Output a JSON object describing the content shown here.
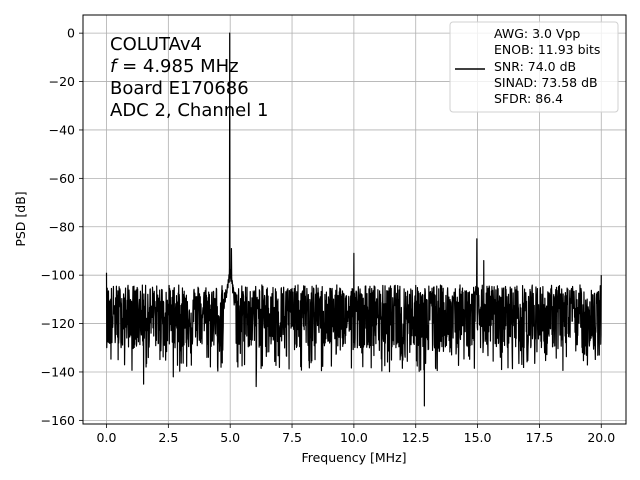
{
  "chart_data": {
    "type": "line",
    "title": "",
    "xlabel": "Frequency [MHz]",
    "ylabel": "PSD [dB]",
    "xlim": [
      -0.95,
      21.0
    ],
    "ylim": [
      -161.5,
      7.5
    ],
    "grid": true,
    "x_ticks": [
      0.0,
      2.5,
      5.0,
      7.5,
      10.0,
      12.5,
      15.0,
      17.5,
      20.0
    ],
    "x_tick_labels": [
      "0.0",
      "2.5",
      "5.0",
      "7.5",
      "10.0",
      "12.5",
      "15.0",
      "17.5",
      "20.0"
    ],
    "y_ticks": [
      0,
      -20,
      -40,
      -60,
      -80,
      -100,
      -120,
      -140,
      -160
    ],
    "y_tick_labels": [
      "0",
      "−20",
      "−40",
      "−60",
      "−80",
      "−100",
      "−120",
      "−140",
      "−160"
    ],
    "annotation": {
      "lines": [
        "COLUTAv4",
        "f = 4.985 MHz",
        "Board E170686",
        "ADC 2, Channel 1"
      ],
      "italic_prefix": "f",
      "freq_rest": " = 4.985 MHz"
    },
    "legend": {
      "placement": "top-right",
      "entries": [
        "AWG: 3.0 Vpp",
        "ENOB: 11.93 bits",
        "SNR: 74.0 dB",
        "SINAD: 73.58 dB",
        "SFDR: 86.4"
      ]
    },
    "series": [
      {
        "color": "#000000",
        "noise_floor": {
          "x_start": 0.0,
          "x_end": 20.0,
          "median_db": -116,
          "min_db": -140,
          "max_db": -104
        },
        "peaks": [
          {
            "x": 0.0,
            "y": -99
          },
          {
            "x": 1.5,
            "y": -145
          },
          {
            "x": 2.7,
            "y": -142
          },
          {
            "x": 4.985,
            "y": 0
          },
          {
            "x": 5.05,
            "y": -89
          },
          {
            "x": 6.05,
            "y": -146
          },
          {
            "x": 10.0,
            "y": -91
          },
          {
            "x": 12.85,
            "y": -154
          },
          {
            "x": 14.97,
            "y": -85
          },
          {
            "x": 15.25,
            "y": -94
          },
          {
            "x": 20.0,
            "y": -100
          }
        ]
      }
    ]
  }
}
